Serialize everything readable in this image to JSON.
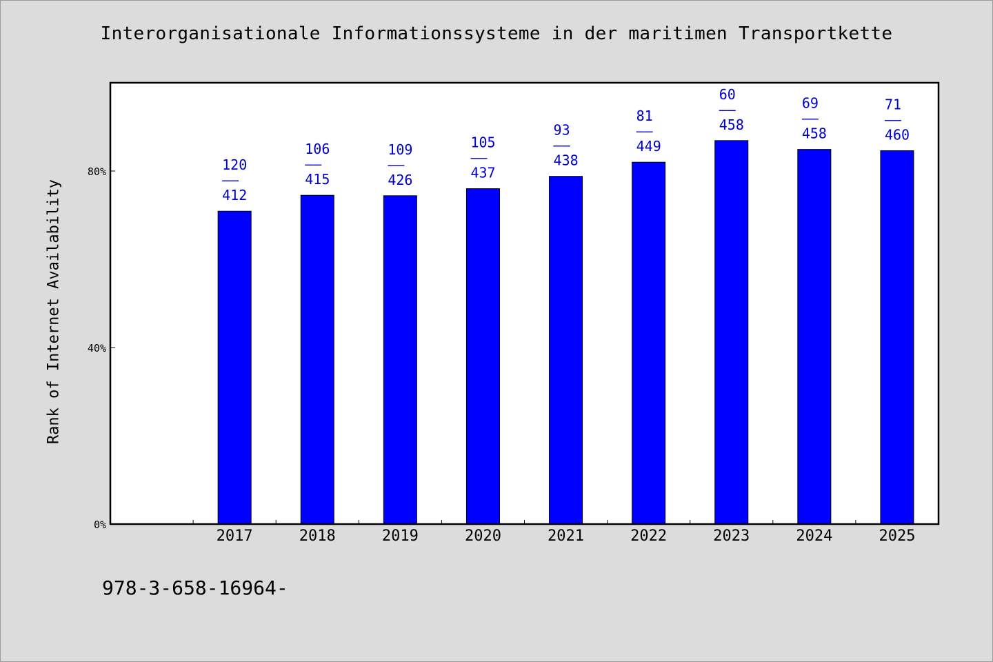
{
  "colors": {
    "background": "#dcdcdc",
    "plot_background": "#ffffff",
    "bar_fill": "#0000ff",
    "data_label": "#0000cc",
    "axis": "#000000"
  },
  "chart_data": {
    "type": "bar",
    "title": "Interorganisationale Informationssysteme in der maritimen Transportkette",
    "ylabel": "Rank of Internet Availability",
    "xlabel": "",
    "footnote": "978-3-658-16964-",
    "y_ticks": [
      "0%",
      "40%",
      "80%"
    ],
    "y_tick_values": [
      0,
      40,
      80
    ],
    "ylim": [
      0,
      100
    ],
    "categories": [
      "2017",
      "2018",
      "2019",
      "2020",
      "2021",
      "2022",
      "2023",
      "2024",
      "2025"
    ],
    "values": [
      70.9,
      74.5,
      74.4,
      76.0,
      78.8,
      82.0,
      86.9,
      84.9,
      84.6
    ],
    "label_top": [
      "120",
      "106",
      "109",
      "105",
      "93",
      "81",
      "60",
      "69",
      "71"
    ],
    "label_separator": "––",
    "label_bottom": [
      "412",
      "415",
      "426",
      "437",
      "438",
      "449",
      "458",
      "458",
      "460"
    ],
    "grid": false,
    "legend": "none"
  }
}
